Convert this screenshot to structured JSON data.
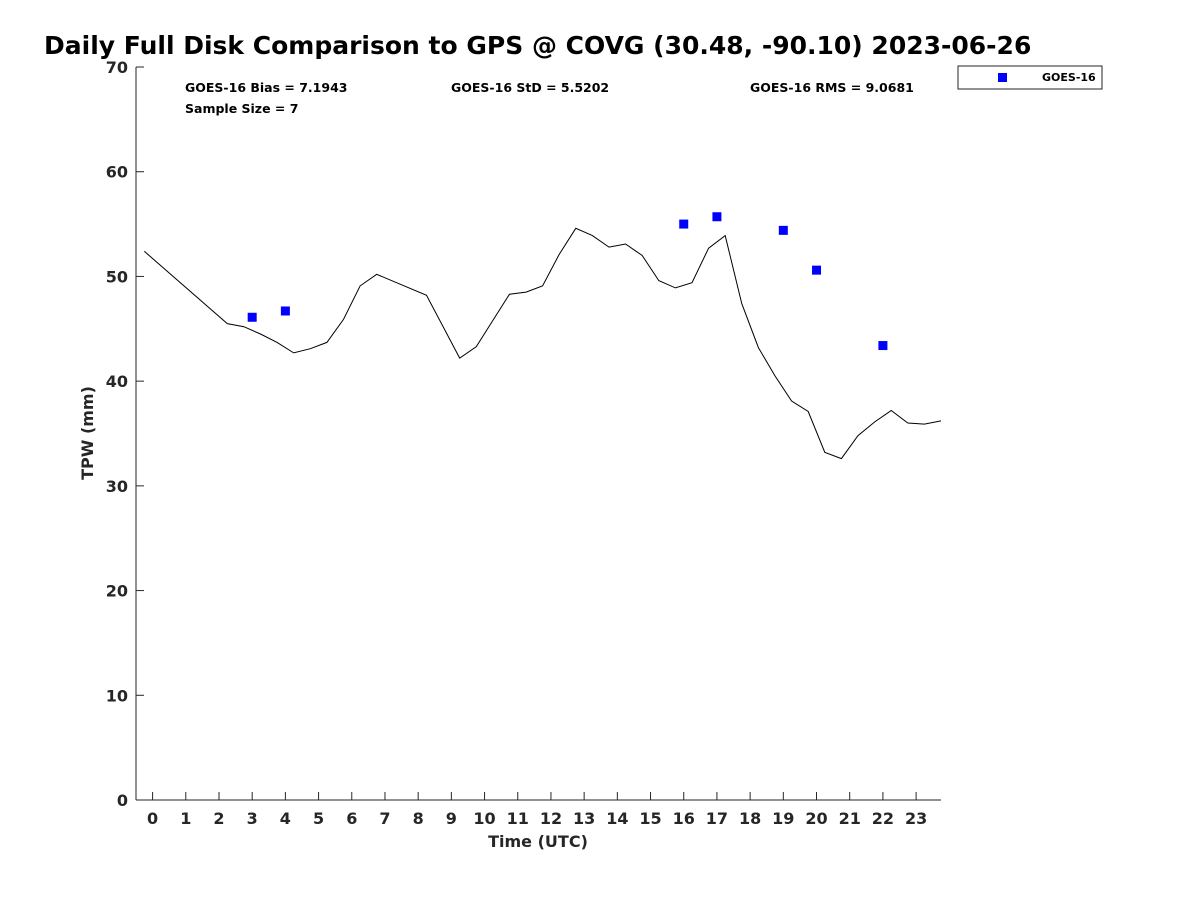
{
  "chart_data": {
    "type": "scatter",
    "title": "Daily Full Disk Comparison to GPS @ COVG (30.48, -90.10) 2023-06-26",
    "xlabel": "Time (UTC)",
    "ylabel": "TPW (mm)",
    "xlim": [
      -0.5,
      23.75
    ],
    "ylim": [
      0,
      70
    ],
    "x_ticks": [
      0,
      1,
      2,
      3,
      4,
      5,
      6,
      7,
      8,
      9,
      10,
      11,
      12,
      13,
      14,
      15,
      16,
      17,
      18,
      19,
      20,
      21,
      22,
      23
    ],
    "y_ticks": [
      0,
      10,
      20,
      30,
      40,
      50,
      60,
      70
    ],
    "grid": false,
    "legend_position": "top-right-outside",
    "stats": {
      "bias": "GOES-16 Bias = 7.1943",
      "std": "GOES-16 StD = 5.5202",
      "rms": "GOES-16 RMS = 9.0681",
      "sample_size": "Sample Size = 7"
    },
    "series": [
      {
        "name": "GOES-16",
        "kind": "scatter",
        "marker": "square",
        "color": "#0000ff",
        "x": [
          3,
          4,
          16,
          17,
          19,
          20,
          22
        ],
        "y": [
          46.1,
          46.7,
          55.0,
          55.7,
          54.4,
          50.6,
          43.4
        ]
      },
      {
        "kind": "line",
        "color": "#000000",
        "x": [
          -0.25,
          2.25,
          2.75,
          3.25,
          3.75,
          4.25,
          4.75,
          5.25,
          5.75,
          6.25,
          6.75,
          8.25,
          9.25,
          9.75,
          10.25,
          10.75,
          11.25,
          11.75,
          12.25,
          12.75,
          13.25,
          13.75,
          14.25,
          14.75,
          15.25,
          15.75,
          16.25,
          16.75,
          17.25,
          17.75,
          18.25,
          18.75,
          19.25,
          19.75,
          20.25,
          20.75,
          21.25,
          21.75,
          22.25,
          22.75,
          23.25,
          23.75
        ],
        "y": [
          52.4,
          45.5,
          45.2,
          44.5,
          43.7,
          42.7,
          43.1,
          43.7,
          45.9,
          49.1,
          50.2,
          48.2,
          42.2,
          43.3,
          45.8,
          48.3,
          48.5,
          49.1,
          52.1,
          54.6,
          53.9,
          52.8,
          53.1,
          52.0,
          49.6,
          48.9,
          49.4,
          52.7,
          53.9,
          47.4,
          43.2,
          40.5,
          38.1,
          37.1,
          33.2,
          32.6,
          34.8,
          36.1,
          37.2,
          36.0,
          35.9,
          36.2
        ]
      }
    ]
  }
}
